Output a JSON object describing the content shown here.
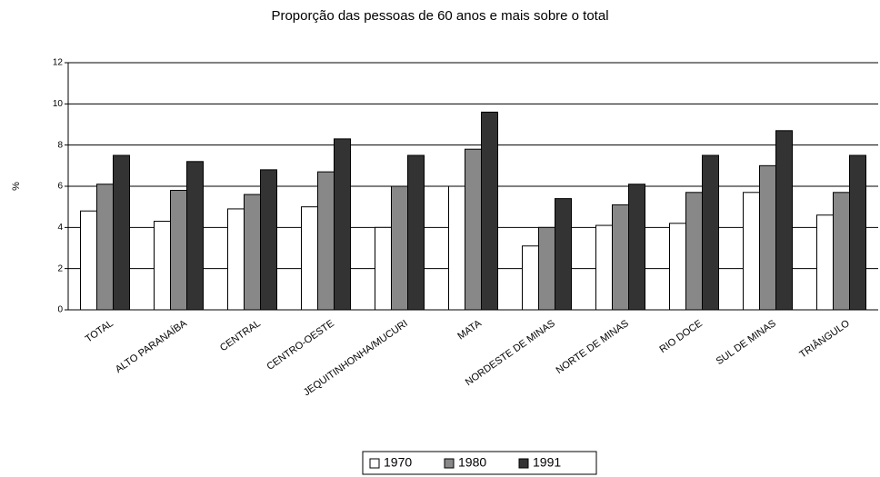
{
  "chart_data": {
    "type": "bar",
    "title": "Proporção das pessoas de 60 anos e mais sobre o total",
    "y_label": "%",
    "categories": [
      "TOTAL",
      "ALTO PARANAÍBA",
      "CENTRAL",
      "CENTRO-OESTE",
      "JEQUITINHONHA/MUCURI",
      "MATA",
      "NORDESTE DE MINAS",
      "NORTE DE MINAS",
      "RIO DOCE",
      "SUL DE MINAS",
      "TRIÂNGULO"
    ],
    "series": [
      {
        "name": "1970",
        "color": "#ffffff",
        "values": [
          4.8,
          4.3,
          4.9,
          5.0,
          4.0,
          6.0,
          3.1,
          4.1,
          4.2,
          5.7,
          4.6
        ]
      },
      {
        "name": "1980",
        "color": "#888888",
        "values": [
          6.1,
          5.8,
          5.6,
          6.7,
          6.0,
          7.8,
          4.0,
          5.1,
          5.7,
          7.0,
          5.7
        ]
      },
      {
        "name": "1991",
        "color": "#333333",
        "values": [
          7.5,
          7.2,
          6.8,
          8.3,
          7.5,
          9.6,
          5.4,
          6.1,
          7.5,
          8.7,
          7.5
        ]
      }
    ],
    "ylim": [
      0,
      12
    ],
    "yticks": [
      0,
      2,
      4,
      6,
      8,
      10,
      12
    ],
    "grid": true,
    "legend": "bottom"
  }
}
